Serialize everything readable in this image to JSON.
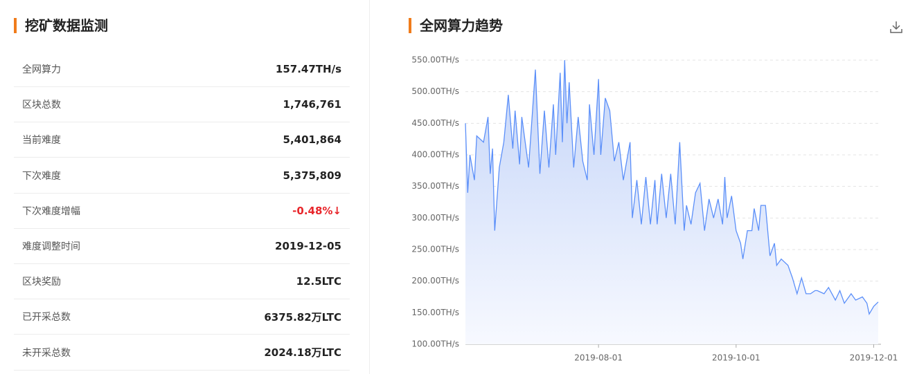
{
  "panel": {
    "title": "挖矿数据监测",
    "rows": [
      {
        "label": "全网算力",
        "value": "157.47TH/s"
      },
      {
        "label": "区块总数",
        "value": "1,746,761"
      },
      {
        "label": "当前难度",
        "value": "5,401,864"
      },
      {
        "label": "下次难度",
        "value": "5,375,809"
      },
      {
        "label": "下次难度增幅",
        "value": "-0.48%↓",
        "color": "#e8262b"
      },
      {
        "label": "难度调整时间",
        "value": "2019-12-05"
      },
      {
        "label": "区块奖励",
        "value": "12.5LTC"
      },
      {
        "label": "已开采总数",
        "value": "6375.82万LTC"
      },
      {
        "label": "未开采总数",
        "value": "2024.18万LTC"
      }
    ]
  },
  "chart_data": {
    "type": "line",
    "title": "全网算力趋势",
    "color": "#5b8ff9",
    "grid": true,
    "x": [
      "2019-06-03",
      "2019-06-04",
      "2019-06-05",
      "2019-06-07",
      "2019-06-08",
      "2019-06-11",
      "2019-06-13",
      "2019-06-14",
      "2019-06-15",
      "2019-06-16",
      "2019-06-18",
      "2019-06-20",
      "2019-06-22",
      "2019-06-24",
      "2019-06-25",
      "2019-06-27",
      "2019-06-28",
      "2019-07-01",
      "2019-07-04",
      "2019-07-06",
      "2019-07-08",
      "2019-07-10",
      "2019-07-12",
      "2019-07-13",
      "2019-07-15",
      "2019-07-16",
      "2019-07-17",
      "2019-07-18",
      "2019-07-19",
      "2019-07-21",
      "2019-07-23",
      "2019-07-25",
      "2019-07-27",
      "2019-07-28",
      "2019-07-30",
      "2019-08-01",
      "2019-08-02",
      "2019-08-04",
      "2019-08-06",
      "2019-08-08",
      "2019-08-10",
      "2019-08-12",
      "2019-08-15",
      "2019-08-16",
      "2019-08-18",
      "2019-08-20",
      "2019-08-22",
      "2019-08-24",
      "2019-08-26",
      "2019-08-27",
      "2019-08-29",
      "2019-08-31",
      "2019-09-02",
      "2019-09-04",
      "2019-09-06",
      "2019-09-08",
      "2019-09-09",
      "2019-09-11",
      "2019-09-13",
      "2019-09-15",
      "2019-09-17",
      "2019-09-19",
      "2019-09-21",
      "2019-09-23",
      "2019-09-25",
      "2019-09-26",
      "2019-09-27",
      "2019-09-29",
      "2019-10-01",
      "2019-10-03",
      "2019-10-04",
      "2019-10-06",
      "2019-10-08",
      "2019-10-09",
      "2019-10-11",
      "2019-10-12",
      "2019-10-14",
      "2019-10-16",
      "2019-10-18",
      "2019-10-19",
      "2019-10-21",
      "2019-10-24",
      "2019-10-26",
      "2019-10-28",
      "2019-10-30",
      "2019-11-01",
      "2019-11-03",
      "2019-11-05",
      "2019-11-06",
      "2019-11-09",
      "2019-11-11",
      "2019-11-14",
      "2019-11-16",
      "2019-11-18",
      "2019-11-21",
      "2019-11-23",
      "2019-11-26",
      "2019-11-28",
      "2019-11-29",
      "2019-12-01",
      "2019-12-03"
    ],
    "values": [
      450,
      340,
      400,
      360,
      430,
      420,
      460,
      370,
      410,
      280,
      380,
      420,
      495,
      410,
      470,
      385,
      460,
      380,
      535,
      370,
      470,
      380,
      480,
      400,
      530,
      420,
      550,
      450,
      515,
      380,
      460,
      390,
      360,
      480,
      400,
      520,
      400,
      490,
      470,
      390,
      420,
      360,
      420,
      300,
      360,
      290,
      365,
      290,
      360,
      290,
      370,
      300,
      370,
      290,
      420,
      280,
      320,
      290,
      340,
      355,
      280,
      330,
      300,
      330,
      290,
      365,
      300,
      335,
      280,
      260,
      235,
      280,
      280,
      315,
      280,
      320,
      320,
      240,
      260,
      225,
      235,
      225,
      205,
      180,
      205,
      180,
      180,
      185,
      185,
      180,
      190,
      170,
      185,
      165,
      180,
      170,
      175,
      165,
      148,
      160,
      167
    ],
    "xlim": [
      "2019-06-03",
      "2019-12-03"
    ],
    "xticks": [
      "2019-08-01",
      "2019-10-01",
      "2019-12-01"
    ],
    "ylim": [
      100,
      550
    ],
    "yticks": [
      {
        "value": 100,
        "label": "100.00TH/s"
      },
      {
        "value": 150,
        "label": "150.00TH/s"
      },
      {
        "value": 200,
        "label": "200.00TH/s"
      },
      {
        "value": 250,
        "label": "250.00TH/s"
      },
      {
        "value": 300,
        "label": "300.00TH/s"
      },
      {
        "value": 350,
        "label": "350.00TH/s"
      },
      {
        "value": 400,
        "label": "400.00TH/s"
      },
      {
        "value": 450,
        "label": "450.00TH/s"
      },
      {
        "value": 500,
        "label": "500.00TH/s"
      },
      {
        "value": 550,
        "label": "550.00TH/s"
      }
    ]
  }
}
